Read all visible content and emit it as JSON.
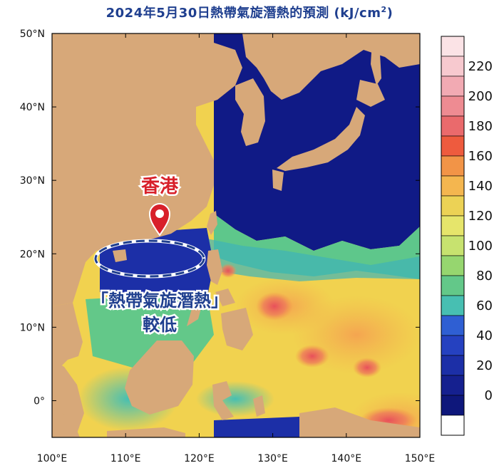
{
  "title": {
    "text": "2024年5月30日熱帶氣旋潛熱的預測 (kJ/cm",
    "sup": "2",
    "close": ")"
  },
  "map": {
    "lon_range": [
      100,
      150
    ],
    "lat_range": [
      -5,
      50
    ],
    "lon_labels": [
      "100°E",
      "110°E",
      "120°E",
      "130°E",
      "140°E",
      "150°E"
    ],
    "lat_labels": [
      "50°N",
      "40°N",
      "30°N",
      "20°N",
      "10°N",
      "0°"
    ]
  },
  "colorbar": {
    "labels": [
      "220",
      "200",
      "180",
      "160",
      "140",
      "120",
      "100",
      "80",
      "60",
      "40",
      "20",
      "0"
    ],
    "colors": [
      "#fbe3e6",
      "#f7c9cf",
      "#f2aab3",
      "#ee8b92",
      "#ea6a6c",
      "#ee5b3e",
      "#f29447",
      "#f4b64f",
      "#ecd255",
      "#e6e56b",
      "#c7e26f",
      "#96d66f",
      "#63c889",
      "#47bfb2",
      "#2f5fd3",
      "#2541c0",
      "#1c2fa7",
      "#15208f",
      "#0e177b",
      "#ffffff"
    ]
  },
  "annotations": {
    "hong_kong": "香港",
    "note_line1": "「熱帶氣旋潛熱」",
    "note_line2": "較低"
  },
  "icons": {
    "location": "location-pin-icon"
  }
}
